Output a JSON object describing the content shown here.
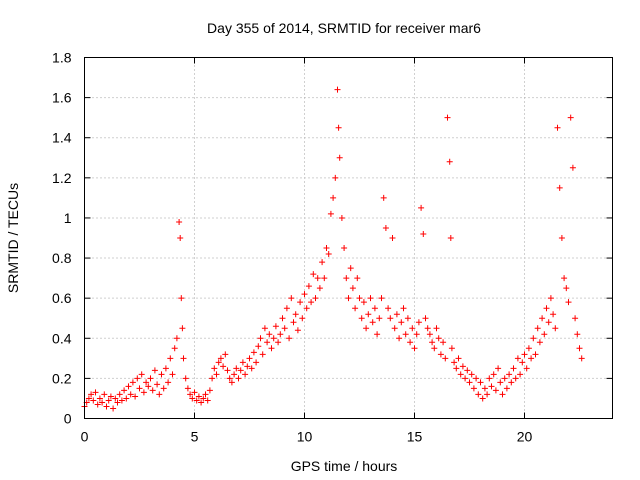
{
  "chart_data": {
    "type": "scatter",
    "title": "Day 355 of 2014, SRMTID for receiver mar6",
    "xlabel": "GPS time / hours",
    "ylabel": "SRMTID / TECUs",
    "xlim": [
      0,
      24
    ],
    "ylim": [
      0,
      1.8
    ],
    "xticks": [
      0,
      5,
      10,
      15,
      20
    ],
    "xtick_labels": [
      "0",
      "5",
      "10",
      "15",
      "20"
    ],
    "yticks": [
      0,
      0.2,
      0.4,
      0.6,
      0.8,
      1.0,
      1.2,
      1.4,
      1.6,
      1.8
    ],
    "ytick_labels": [
      "0",
      "0.2",
      "0.4",
      "0.6",
      "0.8",
      "1",
      "1.2",
      "1.4",
      "1.6",
      "1.8"
    ],
    "grid": true,
    "marker": "+",
    "series_color": "#ff0000",
    "series": [
      {
        "name": "SRMTID",
        "x": [
          0.0,
          0.1,
          0.2,
          0.3,
          0.4,
          0.5,
          0.6,
          0.7,
          0.8,
          0.9,
          1.0,
          1.1,
          1.2,
          1.3,
          1.4,
          1.5,
          1.6,
          1.7,
          1.8,
          1.9,
          2.0,
          2.1,
          2.2,
          2.3,
          2.4,
          2.5,
          2.6,
          2.7,
          2.8,
          2.9,
          3.0,
          3.1,
          3.2,
          3.3,
          3.4,
          3.5,
          3.6,
          3.7,
          3.8,
          3.9,
          4.0,
          4.1,
          4.2,
          4.3,
          4.35,
          4.4,
          4.45,
          4.5,
          4.6,
          4.7,
          4.8,
          4.9,
          5.0,
          5.1,
          5.2,
          5.3,
          5.4,
          5.5,
          5.6,
          5.7,
          5.8,
          5.9,
          6.0,
          6.1,
          6.2,
          6.3,
          6.4,
          6.5,
          6.6,
          6.7,
          6.8,
          6.9,
          7.0,
          7.1,
          7.2,
          7.3,
          7.4,
          7.5,
          7.6,
          7.7,
          7.8,
          7.9,
          8.0,
          8.1,
          8.2,
          8.3,
          8.4,
          8.5,
          8.6,
          8.7,
          8.8,
          8.9,
          9.0,
          9.1,
          9.2,
          9.3,
          9.4,
          9.5,
          9.6,
          9.7,
          9.8,
          9.9,
          10.0,
          10.1,
          10.2,
          10.3,
          10.4,
          10.5,
          10.6,
          10.7,
          10.8,
          10.9,
          11.0,
          11.1,
          11.2,
          11.3,
          11.4,
          11.5,
          11.55,
          11.6,
          11.7,
          11.8,
          11.9,
          12.0,
          12.1,
          12.2,
          12.3,
          12.4,
          12.5,
          12.6,
          12.7,
          12.8,
          12.9,
          13.0,
          13.1,
          13.2,
          13.3,
          13.4,
          13.5,
          13.6,
          13.7,
          13.8,
          13.9,
          14.0,
          14.1,
          14.2,
          14.3,
          14.4,
          14.5,
          14.6,
          14.7,
          14.8,
          14.9,
          15.0,
          15.1,
          15.2,
          15.3,
          15.4,
          15.5,
          15.6,
          15.7,
          15.8,
          15.9,
          16.0,
          16.1,
          16.2,
          16.3,
          16.4,
          16.5,
          16.6,
          16.65,
          16.7,
          16.8,
          16.9,
          17.0,
          17.1,
          17.2,
          17.3,
          17.4,
          17.5,
          17.6,
          17.7,
          17.8,
          17.9,
          18.0,
          18.1,
          18.2,
          18.3,
          18.4,
          18.5,
          18.6,
          18.7,
          18.8,
          18.9,
          19.0,
          19.1,
          19.2,
          19.3,
          19.4,
          19.5,
          19.6,
          19.7,
          19.8,
          19.9,
          20.0,
          20.1,
          20.2,
          20.3,
          20.4,
          20.5,
          20.6,
          20.7,
          20.8,
          20.9,
          21.0,
          21.1,
          21.2,
          21.3,
          21.4,
          21.5,
          21.6,
          21.7,
          21.8,
          21.9,
          22.0,
          22.1,
          22.2,
          22.3,
          22.4,
          22.5,
          22.6
        ],
        "y": [
          0.06,
          0.08,
          0.1,
          0.12,
          0.09,
          0.13,
          0.07,
          0.1,
          0.08,
          0.12,
          0.06,
          0.09,
          0.11,
          0.05,
          0.1,
          0.08,
          0.12,
          0.09,
          0.14,
          0.1,
          0.16,
          0.12,
          0.18,
          0.11,
          0.2,
          0.15,
          0.22,
          0.13,
          0.18,
          0.16,
          0.2,
          0.14,
          0.24,
          0.17,
          0.12,
          0.22,
          0.15,
          0.25,
          0.18,
          0.3,
          0.22,
          0.35,
          0.4,
          0.98,
          0.9,
          0.6,
          0.45,
          0.3,
          0.2,
          0.15,
          0.12,
          0.1,
          0.13,
          0.09,
          0.11,
          0.08,
          0.1,
          0.12,
          0.09,
          0.14,
          0.2,
          0.25,
          0.22,
          0.28,
          0.3,
          0.26,
          0.32,
          0.24,
          0.2,
          0.18,
          0.22,
          0.25,
          0.2,
          0.24,
          0.28,
          0.22,
          0.26,
          0.3,
          0.25,
          0.33,
          0.28,
          0.36,
          0.4,
          0.32,
          0.45,
          0.38,
          0.42,
          0.35,
          0.4,
          0.46,
          0.38,
          0.42,
          0.5,
          0.45,
          0.55,
          0.4,
          0.6,
          0.48,
          0.52,
          0.44,
          0.58,
          0.5,
          0.62,
          0.55,
          0.66,
          0.58,
          0.72,
          0.6,
          0.7,
          0.65,
          0.78,
          0.7,
          0.85,
          0.82,
          1.02,
          1.1,
          1.2,
          1.64,
          1.45,
          1.3,
          1.0,
          0.85,
          0.7,
          0.6,
          0.75,
          0.65,
          0.55,
          0.7,
          0.6,
          0.5,
          0.58,
          0.45,
          0.52,
          0.6,
          0.48,
          0.55,
          0.42,
          0.5,
          0.6,
          1.1,
          0.95,
          0.55,
          0.5,
          0.9,
          0.45,
          0.52,
          0.4,
          0.48,
          0.55,
          0.42,
          0.5,
          0.38,
          0.45,
          0.35,
          0.42,
          0.48,
          1.05,
          0.92,
          0.5,
          0.45,
          0.42,
          0.38,
          0.35,
          0.45,
          0.4,
          0.32,
          0.38,
          0.3,
          1.5,
          1.28,
          0.9,
          0.35,
          0.28,
          0.25,
          0.3,
          0.22,
          0.26,
          0.2,
          0.24,
          0.18,
          0.22,
          0.15,
          0.2,
          0.12,
          0.18,
          0.1,
          0.15,
          0.12,
          0.2,
          0.16,
          0.22,
          0.14,
          0.25,
          0.18,
          0.12,
          0.2,
          0.15,
          0.22,
          0.18,
          0.25,
          0.2,
          0.3,
          0.22,
          0.28,
          0.32,
          0.25,
          0.35,
          0.3,
          0.4,
          0.32,
          0.45,
          0.38,
          0.5,
          0.42,
          0.55,
          0.48,
          0.6,
          0.52,
          0.45,
          1.45,
          1.15,
          0.9,
          0.7,
          0.65,
          0.58,
          1.5,
          1.25,
          0.5,
          0.42,
          0.35,
          0.3
        ]
      }
    ]
  }
}
